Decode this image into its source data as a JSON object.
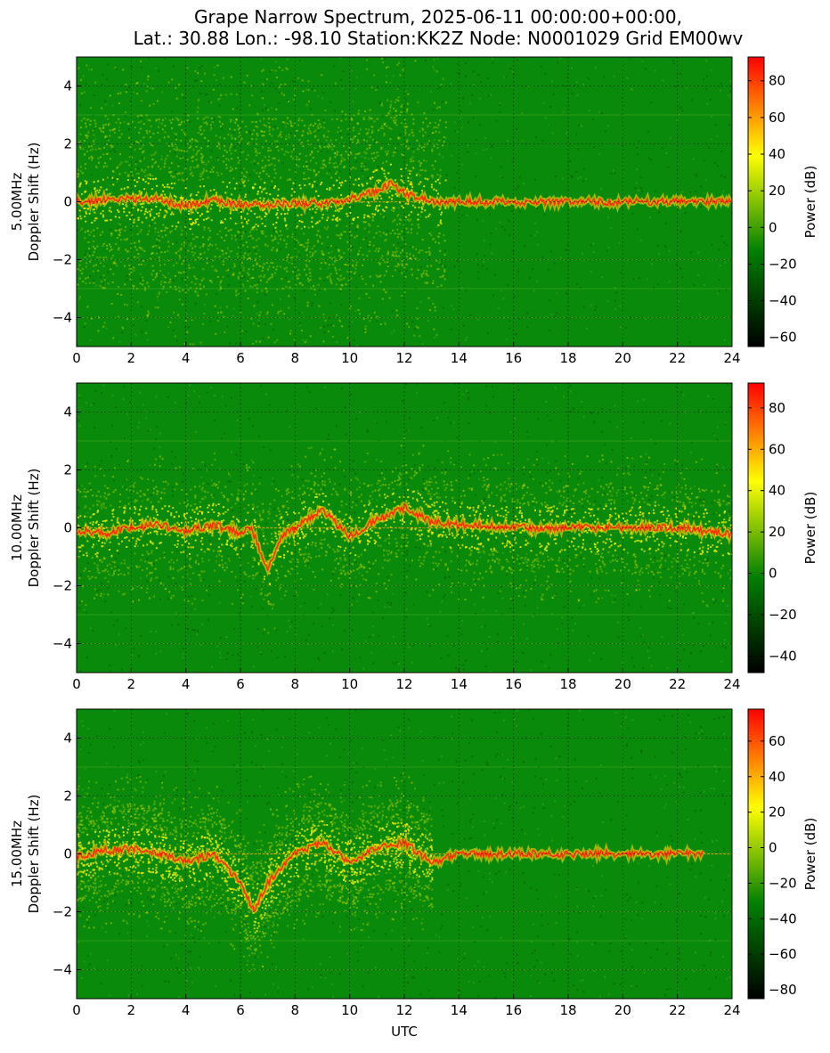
{
  "title_line1": "Grape Narrow Spectrum, 2025-06-11 00:00:00+00:00,",
  "title_line2": "Lat.: 30.88 Lon.: -98.10 Station:KK2Z Node: N0001029 Grid EM00wv",
  "colormap": [
    "#000000",
    "#008000",
    "#ffff00",
    "#ff0000"
  ],
  "chart_data": [
    {
      "type": "heatmap",
      "frequency": "5.00MHz",
      "ylabel_line1": "5.00MHz",
      "ylabel_line2": "Doppler Shift (Hz)",
      "xlabel": "",
      "xlim": [
        0,
        24
      ],
      "ylim": [
        -5,
        5
      ],
      "xticks": [
        0,
        2,
        4,
        6,
        8,
        10,
        12,
        14,
        16,
        18,
        20,
        22,
        24
      ],
      "yticks": [
        -4,
        -2,
        0,
        2,
        4
      ],
      "grid": true,
      "colorbar": {
        "label": "Power (dB)",
        "min": -65,
        "max": 93,
        "ticks": [
          -60,
          -40,
          -20,
          0,
          20,
          40,
          60,
          80
        ]
      },
      "carrier": [
        [
          0,
          0.0
        ],
        [
          1,
          0.05
        ],
        [
          2,
          0.1
        ],
        [
          3,
          0.1
        ],
        [
          4,
          -0.15
        ],
        [
          5,
          0.05
        ],
        [
          6,
          -0.1
        ],
        [
          7,
          -0.1
        ],
        [
          8,
          -0.05
        ],
        [
          9,
          -0.05
        ],
        [
          10,
          0.1
        ],
        [
          11,
          0.4
        ],
        [
          11.5,
          0.6
        ],
        [
          12,
          0.3
        ],
        [
          13,
          0.0
        ],
        [
          15.5,
          0.0
        ],
        [
          24,
          0.0
        ]
      ],
      "yellow_spread_utc": [
        0,
        13.5
      ]
    },
    {
      "type": "heatmap",
      "frequency": "10.00MHz",
      "ylabel_line1": "10.00MHz",
      "ylabel_line2": "Doppler Shift (Hz)",
      "xlabel": "",
      "xlim": [
        0,
        24
      ],
      "ylim": [
        -5,
        5
      ],
      "xticks": [
        0,
        2,
        4,
        6,
        8,
        10,
        12,
        14,
        16,
        18,
        20,
        22,
        24
      ],
      "yticks": [
        -4,
        -2,
        0,
        2,
        4
      ],
      "grid": true,
      "colorbar": {
        "label": "Power (dB)",
        "min": -48,
        "max": 92,
        "ticks": [
          -40,
          -20,
          0,
          20,
          40,
          60,
          80
        ]
      },
      "carrier": [
        [
          0,
          -0.1
        ],
        [
          1,
          -0.2
        ],
        [
          2,
          0.0
        ],
        [
          3,
          0.1
        ],
        [
          4,
          -0.1
        ],
        [
          5,
          0.1
        ],
        [
          6,
          -0.2
        ],
        [
          6.4,
          0.0
        ],
        [
          7,
          -1.5
        ],
        [
          7.5,
          -0.3
        ],
        [
          8,
          0.0
        ],
        [
          9,
          0.6
        ],
        [
          10,
          -0.3
        ],
        [
          11,
          0.3
        ],
        [
          12,
          0.7
        ],
        [
          13,
          0.2
        ],
        [
          14,
          0.1
        ],
        [
          16,
          0.0
        ],
        [
          18,
          0.0
        ],
        [
          20,
          0.0
        ],
        [
          22,
          0.0
        ],
        [
          24,
          -0.2
        ]
      ],
      "yellow_spread_utc": [
        0,
        24
      ]
    },
    {
      "type": "heatmap",
      "frequency": "15.00MHz",
      "ylabel_line1": "15.00MHz",
      "ylabel_line2": "Doppler Shift (Hz)",
      "xlabel": "UTC",
      "xlim": [
        0,
        24
      ],
      "ylim": [
        -5,
        5
      ],
      "xticks": [
        0,
        2,
        4,
        6,
        8,
        10,
        12,
        14,
        16,
        18,
        20,
        22,
        24
      ],
      "yticks": [
        -4,
        -2,
        0,
        2,
        4
      ],
      "grid": true,
      "colorbar": {
        "label": "Power (dB)",
        "min": -85,
        "max": 78,
        "ticks": [
          -80,
          -60,
          -40,
          -20,
          0,
          20,
          40,
          60
        ]
      },
      "carrier": [
        [
          0,
          -0.1
        ],
        [
          1,
          0.1
        ],
        [
          2,
          0.2
        ],
        [
          3,
          0.0
        ],
        [
          4,
          -0.3
        ],
        [
          5,
          0.0
        ],
        [
          6,
          -1.0
        ],
        [
          6.5,
          -2.0
        ],
        [
          7,
          -1.0
        ],
        [
          8,
          0.0
        ],
        [
          9,
          0.4
        ],
        [
          10,
          -0.3
        ],
        [
          11,
          0.2
        ],
        [
          12,
          0.4
        ],
        [
          13,
          -0.3
        ],
        [
          14,
          0.0
        ],
        [
          16,
          0.0
        ],
        [
          18,
          0.0
        ],
        [
          20,
          0.0
        ],
        [
          22,
          0.0
        ],
        [
          23,
          0.0
        ]
      ],
      "yellow_spread_utc": [
        0,
        13
      ]
    }
  ]
}
